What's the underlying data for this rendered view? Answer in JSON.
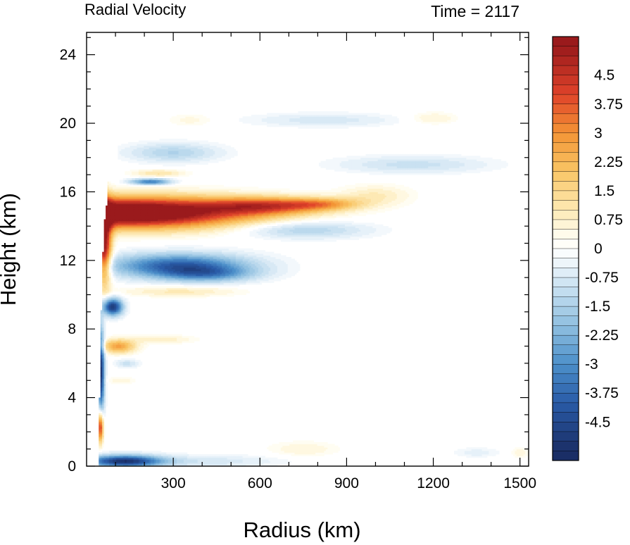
{
  "chart_data": {
    "type": "heatmap",
    "title_left": "Radial Velocity",
    "title_right": "Time = 2117",
    "xlabel": "Radius (km)",
    "ylabel": "Height (km)",
    "xlim": [
      0,
      1530
    ],
    "ylim": [
      0,
      25.3
    ],
    "xticks": [
      300,
      600,
      900,
      1200,
      1500
    ],
    "yticks": [
      0,
      4,
      8,
      12,
      16,
      20,
      24
    ],
    "xtick_labels": [
      "300",
      "600",
      "900",
      "1200",
      "1500"
    ],
    "ytick_labels": [
      "0",
      "4",
      "8",
      "12",
      "16",
      "20",
      "24"
    ],
    "colorbar": {
      "levels_min": -5.25,
      "levels_max": 5.25,
      "level_step": 0.25,
      "labels": [
        "4.5",
        "3.75",
        "3",
        "2.25",
        "1.5",
        "0.75",
        "0",
        "-0.75",
        "-1.5",
        "-2.25",
        "-3",
        "-3.75",
        "-4.5"
      ],
      "label_values": [
        4.5,
        3.75,
        3,
        2.25,
        1.5,
        0.75,
        0,
        -0.75,
        -1.5,
        -2.25,
        -3,
        -3.75,
        -4.5
      ],
      "color_stops": [
        {
          "v": -5.25,
          "c": "#1a2e66"
        },
        {
          "v": -4.0,
          "c": "#2a5ca8"
        },
        {
          "v": -3.0,
          "c": "#4c8fc9"
        },
        {
          "v": -2.0,
          "c": "#8fbfe0"
        },
        {
          "v": -1.0,
          "c": "#c9e1f1"
        },
        {
          "v": -0.4,
          "c": "#ecf4fa"
        },
        {
          "v": 0.0,
          "c": "#ffffff"
        },
        {
          "v": 0.4,
          "c": "#fffbea"
        },
        {
          "v": 1.0,
          "c": "#fde9b4"
        },
        {
          "v": 2.0,
          "c": "#f9c565"
        },
        {
          "v": 3.0,
          "c": "#f39435"
        },
        {
          "v": 4.0,
          "c": "#e0432a"
        },
        {
          "v": 5.25,
          "c": "#9a1a1c"
        }
      ]
    },
    "features": [
      {
        "desc": "upper-level outflow jet",
        "r": 140,
        "z": 14.8,
        "sr": 420,
        "sz": 0.9,
        "v": 7.0
      },
      {
        "desc": "outflow jet extension",
        "r": 620,
        "z": 15.2,
        "sr": 200,
        "sz": 0.5,
        "v": 3.2
      },
      {
        "desc": "outflow tail",
        "r": 820,
        "z": 15.3,
        "sr": 130,
        "sz": 0.35,
        "v": 2.0
      },
      {
        "desc": "outflow faint tongue",
        "r": 1000,
        "z": 15.8,
        "sr": 120,
        "sz": 0.6,
        "v": 0.9
      },
      {
        "desc": "inner upper outflow column",
        "r": 60,
        "z": 13.0,
        "sr": 25,
        "sz": 2.2,
        "v": 5.5
      },
      {
        "desc": "inflow layer below outflow",
        "r": 320,
        "z": 11.7,
        "sr": 240,
        "sz": 0.7,
        "v": -4.0
      },
      {
        "desc": "inflow band lower tier",
        "r": 420,
        "z": 11.2,
        "sr": 160,
        "sz": 0.45,
        "v": -2.0
      },
      {
        "desc": "inflow diagonal above outflow",
        "r": 750,
        "z": 13.8,
        "sr": 220,
        "sz": 0.5,
        "v": -1.5
      },
      {
        "desc": "upper inflow",
        "r": 300,
        "z": 18.3,
        "sr": 160,
        "sz": 0.55,
        "v": -1.4
      },
      {
        "desc": "upper inflow right",
        "r": 1130,
        "z": 17.6,
        "sr": 260,
        "sz": 0.5,
        "v": -1.0
      },
      {
        "desc": "top inflow",
        "r": 820,
        "z": 20.2,
        "sr": 250,
        "sz": 0.4,
        "v": -0.8
      },
      {
        "desc": "top outflow right",
        "r": 1200,
        "z": 20.3,
        "sr": 80,
        "sz": 0.35,
        "v": 0.7
      },
      {
        "desc": "top outflow left",
        "r": 360,
        "z": 20.2,
        "sr": 80,
        "sz": 0.35,
        "v": 0.5
      },
      {
        "desc": "dark inflow near 16.5",
        "r": 220,
        "z": 16.6,
        "sr": 70,
        "sz": 0.18,
        "v": -3.5
      },
      {
        "desc": "outflow near 17",
        "r": 250,
        "z": 17.1,
        "sr": 90,
        "sz": 0.2,
        "v": 1.2
      },
      {
        "desc": "mid outflow band",
        "r": 320,
        "z": 10.2,
        "sr": 200,
        "sz": 0.3,
        "v": 1.0
      },
      {
        "desc": "mid inflow cell",
        "r": 90,
        "z": 9.3,
        "sr": 35,
        "sz": 0.5,
        "v": -5.0
      },
      {
        "desc": "mid outflow cell",
        "r": 110,
        "z": 7.0,
        "sr": 60,
        "sz": 0.4,
        "v": 2.7
      },
      {
        "desc": "outflow band near 7",
        "r": 260,
        "z": 7.4,
        "sr": 110,
        "sz": 0.25,
        "v": 0.8
      },
      {
        "desc": "inner inflow column",
        "r": 50,
        "z": 5.5,
        "sr": 12,
        "sz": 2.5,
        "v": -5.0
      },
      {
        "desc": "weak inflow near 6",
        "r": 140,
        "z": 6.0,
        "sr": 40,
        "sz": 0.25,
        "v": -1.0
      },
      {
        "desc": "weak outflow near 5",
        "r": 120,
        "z": 5.0,
        "sr": 50,
        "sz": 0.2,
        "v": 0.6
      },
      {
        "desc": "low outflow column",
        "r": 48,
        "z": 2.3,
        "sr": 10,
        "sz": 0.9,
        "v": 5.0
      },
      {
        "desc": "boundary-layer inflow",
        "r": 130,
        "z": 0.3,
        "sr": 130,
        "sz": 0.35,
        "v": -5.0
      },
      {
        "desc": "boundary-layer inflow tail",
        "r": 420,
        "z": 0.3,
        "sr": 260,
        "sz": 0.35,
        "v": -0.8
      },
      {
        "desc": "low-level outflow patches",
        "r": 750,
        "z": 1.0,
        "sr": 120,
        "sz": 0.45,
        "v": 0.6
      },
      {
        "desc": "far low-level inflow",
        "r": 1350,
        "z": 0.8,
        "sr": 80,
        "sz": 0.3,
        "v": -0.5
      },
      {
        "desc": "far low-level outflow",
        "r": 1500,
        "z": 0.8,
        "sr": 30,
        "sz": 0.3,
        "v": 0.6
      }
    ],
    "core_edge_r": [
      [
        0,
        45
      ],
      [
        4,
        45
      ],
      [
        10,
        52
      ],
      [
        14,
        60
      ],
      [
        16,
        75
      ]
    ]
  }
}
